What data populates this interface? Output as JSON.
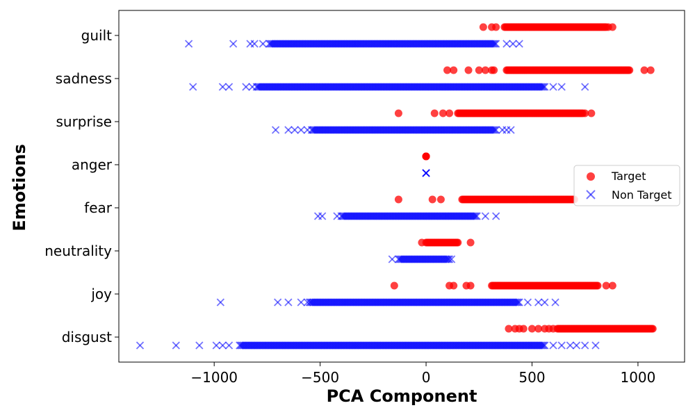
{
  "chart_data": {
    "type": "scatter",
    "xlabel": "PCA Component",
    "ylabel": "Emotions",
    "xlim": [
      -1450,
      1220
    ],
    "x_ticks": [
      -1000,
      -500,
      0,
      500,
      1000
    ],
    "x_tick_labels": [
      "−1000",
      "−500",
      "0",
      "500",
      "1000"
    ],
    "categories": [
      "guilt",
      "sadness",
      "surprise",
      "anger",
      "fear",
      "neutrality",
      "joy",
      "disgust"
    ],
    "grid": false,
    "legend_position": "center-right",
    "series": [
      {
        "name": "Target",
        "marker": "circle",
        "color": "#ff0000",
        "ranges": [
          {
            "category": "guilt",
            "min": 270,
            "max": 880,
            "dense_from": 370,
            "dense_to": 850
          },
          {
            "category": "sadness",
            "min": 100,
            "max": 1060,
            "dense_from": 380,
            "dense_to": 960
          },
          {
            "category": "surprise",
            "min": -130,
            "max": 780,
            "dense_from": 150,
            "dense_to": 740
          },
          {
            "category": "anger",
            "min": 0,
            "max": 0,
            "dense_from": 0,
            "dense_to": 0
          },
          {
            "category": "fear",
            "min": -130,
            "max": 700,
            "dense_from": 170,
            "dense_to": 700
          },
          {
            "category": "neutrality",
            "min": -20,
            "max": 210,
            "dense_from": 0,
            "dense_to": 150
          },
          {
            "category": "joy",
            "min": -150,
            "max": 880,
            "dense_from": 310,
            "dense_to": 810
          },
          {
            "category": "disgust",
            "min": 390,
            "max": 1100,
            "dense_from": 620,
            "dense_to": 1070
          }
        ],
        "outliers": {
          "guilt": [
            270,
            310,
            330,
            860,
            880
          ],
          "sadness": [
            100,
            130,
            200,
            250,
            280,
            310,
            320,
            1030,
            1060
          ],
          "surprise": [
            -130,
            40,
            80,
            110,
            750,
            780
          ],
          "fear": [
            -130,
            30,
            70
          ],
          "neutrality": [
            -20,
            210
          ],
          "joy": [
            -150,
            110,
            130,
            190,
            210,
            850,
            880
          ],
          "disgust": [
            390,
            420,
            440,
            460,
            500,
            530,
            560,
            580,
            600
          ]
        }
      },
      {
        "name": "Non Target",
        "marker": "x",
        "color": "#0000ff",
        "ranges": [
          {
            "category": "guilt",
            "min": -1120,
            "max": 440,
            "dense_from": -740,
            "dense_to": 330
          },
          {
            "category": "sadness",
            "min": -1100,
            "max": 750,
            "dense_from": -800,
            "dense_to": 560
          },
          {
            "category": "surprise",
            "min": -710,
            "max": 400,
            "dense_from": -540,
            "dense_to": 330
          },
          {
            "category": "anger",
            "min": 0,
            "max": 0,
            "dense_from": 0,
            "dense_to": 0
          },
          {
            "category": "fear",
            "min": -510,
            "max": 330,
            "dense_from": -400,
            "dense_to": 240
          },
          {
            "category": "neutrality",
            "min": -160,
            "max": 120,
            "dense_from": -130,
            "dense_to": 110
          },
          {
            "category": "joy",
            "min": -970,
            "max": 610,
            "dense_from": -550,
            "dense_to": 440
          },
          {
            "category": "disgust",
            "min": -1350,
            "max": 800,
            "dense_from": -880,
            "dense_to": 560
          }
        ],
        "outliers": {
          "guilt": [
            -1120,
            -910,
            -830,
            -810,
            -770,
            380,
            410,
            440
          ],
          "sadness": [
            -1100,
            -960,
            -930,
            -850,
            -820,
            600,
            640,
            750
          ],
          "surprise": [
            -710,
            -650,
            -620,
            -590,
            -560,
            360,
            380,
            400
          ],
          "fear": [
            -510,
            -490,
            -420,
            280,
            330
          ],
          "neutrality": [
            -160,
            120
          ],
          "joy": [
            -970,
            -700,
            -650,
            -590,
            -560,
            480,
            530,
            560,
            610
          ],
          "disgust": [
            -1350,
            -1180,
            -1070,
            -990,
            -960,
            -930,
            600,
            640,
            680,
            710,
            750,
            800
          ]
        }
      }
    ]
  }
}
